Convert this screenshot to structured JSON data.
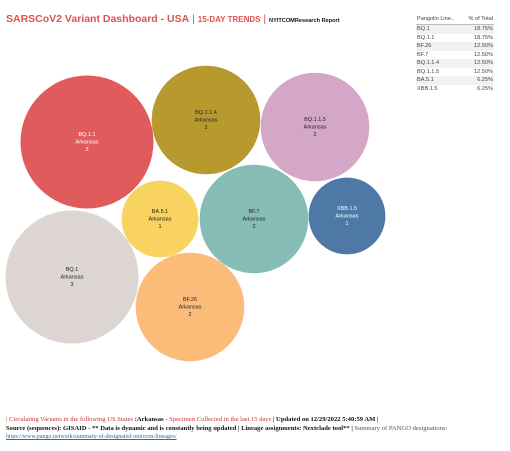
{
  "header": {
    "title": "SARSCoV2 Variant Dashboard - USA",
    "sep1": " | ",
    "subtitle": "15-DAY TRENDS",
    "sep2": " | ",
    "report": "NYITCOMResearch Report"
  },
  "legend": {
    "col_lineage": "Pangolin Line..",
    "col_pct": "% of Total",
    "rows": [
      {
        "lineage": "BQ.1",
        "pct": "18.75%"
      },
      {
        "lineage": "BQ.1.1",
        "pct": "18.75%"
      },
      {
        "lineage": "BF.26",
        "pct": "12.50%"
      },
      {
        "lineage": "BF.7",
        "pct": "12.50%"
      },
      {
        "lineage": "BQ.1.1.4",
        "pct": "12.50%"
      },
      {
        "lineage": "BQ.1.1.5",
        "pct": "12.50%"
      },
      {
        "lineage": "BA.5.1",
        "pct": "6.25%"
      },
      {
        "lineage": "XBB.1.5",
        "pct": "6.25%"
      }
    ]
  },
  "chart_data": {
    "type": "bubble",
    "bubbles": [
      {
        "lineage": "BQ.1.1",
        "state": "Arkansas",
        "count": 3,
        "color": "#e05c5c",
        "text_color": "#ffffff"
      },
      {
        "lineage": "BQ.1.1.4",
        "state": "Arkansas",
        "count": 2,
        "color": "#b8992e",
        "text_color": "#222222"
      },
      {
        "lineage": "BQ.1.1.5",
        "state": "Arkansas",
        "count": 2,
        "color": "#d4a6c8",
        "text_color": "#222222"
      },
      {
        "lineage": "BA.5.1",
        "state": "Arkansas",
        "count": 1,
        "color": "#f9d35f",
        "text_color": "#222222"
      },
      {
        "lineage": "BF.7",
        "state": "Arkansas",
        "count": 2,
        "color": "#86bcb6",
        "text_color": "#222222"
      },
      {
        "lineage": "XBB.1.5",
        "state": "Arkansas",
        "count": 1,
        "color": "#4e79a7",
        "text_color": "#ffffff"
      },
      {
        "lineage": "BQ.1",
        "state": "Arkansas",
        "count": 3,
        "color": "#dcd5d2",
        "text_color": "#222222"
      },
      {
        "lineage": "BF.26",
        "state": "Arkansas",
        "count": 2,
        "color": "#fbbc7a",
        "text_color": "#222222"
      }
    ]
  },
  "footer": {
    "line1_open": "| ",
    "line1_red1": "Circulating Variants in the following US States ",
    "line1_state": ":Arkansas",
    "line1_red2": " - Specimen Collected in the last 15 days",
    "line1_updated": " | Updated on 12/29/2022 5:40:59 AM |",
    "line2_source": "Source (sequences): GISAID - ** Data is dynamic and is constantly being updated | Lineage assignments: Nextclade tool** |",
    "line2_summary": " Summary of PANGO designations:",
    "line3_link": "https://www.pango.network/summary-of-designated-omicron-lineages/"
  }
}
